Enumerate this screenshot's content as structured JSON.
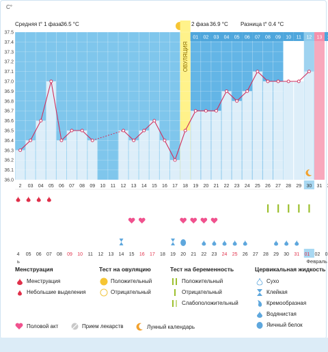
{
  "header": {
    "axis_unit": "C°",
    "phase1_label": "Средняя t° 1 фаза",
    "phase1_value": "36.5 °C",
    "phase2_label": "2 фаза",
    "phase2_value": "36.9 °C",
    "diff_label": "Разница t°",
    "diff_value": "0.4 °C",
    "ovulation_label": "ОВУЛЯЦИЯ"
  },
  "chart_data": {
    "type": "bar",
    "ylim": [
      36.0,
      37.5
    ],
    "y_ticks": [
      "37.5",
      "37.4",
      "37.3",
      "37.2",
      "37.1",
      "37.0",
      "36.9",
      "36.8",
      "36.7",
      "36.6",
      "36.5",
      "36.4",
      "36.3",
      "36.2",
      "36.1",
      "36.0"
    ],
    "cycle_days": [
      "2",
      "03",
      "04",
      "05",
      "06",
      "07",
      "08",
      "09",
      "10",
      "11",
      "12",
      "13",
      "14",
      "15",
      "16",
      "17",
      "18",
      "19",
      "20",
      "21",
      "22",
      "23",
      "24",
      "25",
      "26",
      "27",
      "28",
      "29",
      "30",
      "31",
      "32"
    ],
    "phase2_days": [
      "01",
      "02",
      "03",
      "04",
      "05",
      "06",
      "07",
      "08",
      "09",
      "10",
      "11",
      "12",
      "13",
      "14"
    ],
    "values": [
      36.3,
      36.4,
      36.6,
      37.0,
      36.4,
      36.5,
      36.5,
      36.4,
      null,
      null,
      36.5,
      36.4,
      36.5,
      36.6,
      36.4,
      36.2,
      36.5,
      36.7,
      36.7,
      36.7,
      36.9,
      36.8,
      36.9,
      37.1,
      37.0,
      37.0,
      37.0,
      37.0,
      37.1,
      null,
      null
    ],
    "ovulation_day_index": 16,
    "today_index": 28,
    "highlight_index": 29,
    "dates": [
      "4",
      "05",
      "06",
      "07",
      "08",
      "09",
      "10",
      "11",
      "12",
      "13",
      "14",
      "15",
      "16",
      "17",
      "18",
      "19",
      "20",
      "21",
      "22",
      "23",
      "24",
      "25",
      "26",
      "27",
      "28",
      "29",
      "30",
      "31",
      "01",
      "02",
      "03"
    ],
    "red_date_indexes": [
      5,
      6,
      12,
      13,
      20,
      21,
      27,
      28
    ],
    "month_label": "Февраль",
    "lower_left_label": "ь"
  },
  "legend": {
    "menstruation": {
      "title": "Менструация",
      "items": [
        "Менструация",
        "Небольшие выделения"
      ]
    },
    "ovulation_test": {
      "title": "Тест на овуляцию",
      "items": [
        "Положительный",
        "Отрицательный"
      ]
    },
    "pregnancy_test": {
      "title": "Тест на беременность",
      "items": [
        "Положительный",
        "Отрицательный",
        "Слабоположительный"
      ]
    },
    "cervical": {
      "title": "Цервикальная жидкость",
      "items": [
        "Сухо",
        "Клейкая",
        "Кремообразная",
        "Водянистая",
        "Яичный белок"
      ]
    },
    "bottom": [
      "Половой акт",
      "Прием лекарств",
      "Лунный календарь"
    ]
  },
  "colors": {
    "phase1_bg": "#7fc6ec",
    "phase2_bg": "#63b5e6",
    "bar": "#ddeef9",
    "line": "#d02d5b",
    "ovulation": "#fff28a",
    "highlight": "#f8a8bc",
    "blood": "#e0304a",
    "heart": "#f0528e",
    "test_green": "#9cbf2d",
    "drop": "#5ea7dd",
    "moon": "#f2a12d"
  }
}
